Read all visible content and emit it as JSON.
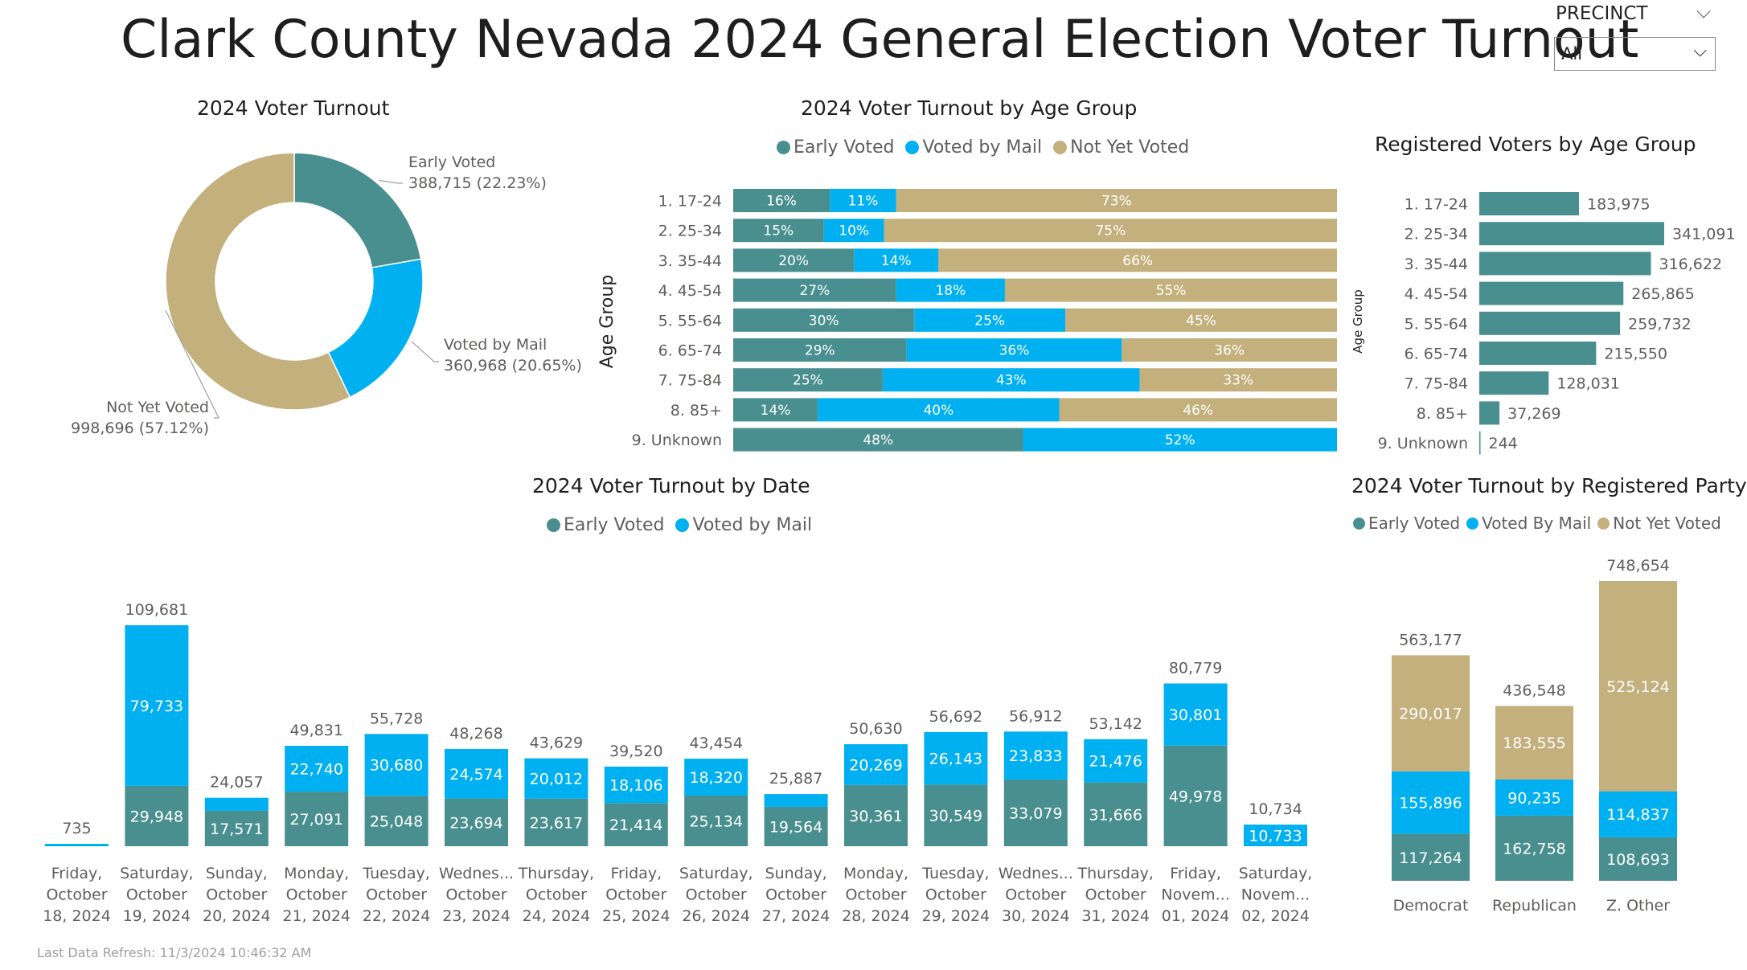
{
  "title": "Clark County Nevada 2024 General Election Voter Turnout",
  "slicer": {
    "label": "PRECINCT",
    "value": "All"
  },
  "refresh": "Last Data Refresh: 11/3/2024 10:46:32 AM",
  "colors": {
    "early": "#4a8f8f",
    "mail": "#00b0f0",
    "notyet": "#c4b07c"
  },
  "chart_data": [
    {
      "id": "donut",
      "type": "pie",
      "title": "2024 Voter Turnout",
      "slices": [
        {
          "name": "Early Voted",
          "value": 388715,
          "label": "388,715 (22.23%)",
          "percent": 22.23
        },
        {
          "name": "Voted by Mail",
          "value": 360968,
          "label": "360,968 (20.65%)",
          "percent": 20.65
        },
        {
          "name": "Not Yet Voted",
          "value": 998696,
          "label": "998,696 (57.12%)",
          "percent": 57.12
        }
      ]
    },
    {
      "id": "age_turnout",
      "type": "bar",
      "title": "2024 Voter Turnout by Age Group",
      "orientation": "horizontal-stacked-100",
      "ylabel": "Age Group",
      "categories": [
        "1. 17-24",
        "2. 25-34",
        "3. 35-44",
        "4. 45-54",
        "5. 55-64",
        "6. 65-74",
        "7. 75-84",
        "8. 85+",
        "9. Unknown"
      ],
      "series": [
        {
          "name": "Early Voted",
          "values": [
            16,
            15,
            20,
            27,
            30,
            29,
            25,
            14,
            48
          ]
        },
        {
          "name": "Voted by Mail",
          "values": [
            11,
            10,
            14,
            18,
            25,
            36,
            43,
            40,
            52
          ]
        },
        {
          "name": "Not Yet Voted",
          "values": [
            73,
            75,
            66,
            55,
            45,
            36,
            33,
            46,
            0
          ]
        }
      ]
    },
    {
      "id": "registered_age",
      "type": "bar",
      "title": "Registered Voters by Age Group",
      "orientation": "horizontal",
      "ylabel": "Age Group",
      "categories": [
        "1. 17-24",
        "2. 25-34",
        "3. 35-44",
        "4. 45-54",
        "5. 55-64",
        "6. 65-74",
        "7. 75-84",
        "8. 85+",
        "9. Unknown"
      ],
      "values": [
        183975,
        341091,
        316622,
        265865,
        259732,
        215550,
        128031,
        37269,
        244
      ],
      "labels": [
        "183,975",
        "341,091",
        "316,622",
        "265,865",
        "259,732",
        "215,550",
        "128,031",
        "37,269",
        "244"
      ]
    },
    {
      "id": "date_turnout",
      "type": "bar",
      "title": "2024 Voter Turnout by Date",
      "orientation": "vertical-stacked",
      "categories": [
        [
          "Friday,",
          "October",
          "18, 2024"
        ],
        [
          "Saturday,",
          "October",
          "19, 2024"
        ],
        [
          "Sunday,",
          "October",
          "20, 2024"
        ],
        [
          "Monday,",
          "October",
          "21, 2024"
        ],
        [
          "Tuesday,",
          "October",
          "22, 2024"
        ],
        [
          "Wednes...",
          "October",
          "23, 2024"
        ],
        [
          "Thursday,",
          "October",
          "24, 2024"
        ],
        [
          "Friday,",
          "October",
          "25, 2024"
        ],
        [
          "Saturday,",
          "October",
          "26, 2024"
        ],
        [
          "Sunday,",
          "October",
          "27, 2024"
        ],
        [
          "Monday,",
          "October",
          "28, 2024"
        ],
        [
          "Tuesday,",
          "October",
          "29, 2024"
        ],
        [
          "Wednes...",
          "October",
          "30, 2024"
        ],
        [
          "Thursday,",
          "October",
          "31, 2024"
        ],
        [
          "Friday,",
          "Novem...",
          "01, 2024"
        ],
        [
          "Saturday,",
          "Novem...",
          "02, 2024"
        ]
      ],
      "series": [
        {
          "name": "Early Voted",
          "values": [
            0,
            29948,
            17571,
            27091,
            25048,
            23694,
            23617,
            21414,
            25134,
            19564,
            30361,
            30549,
            33079,
            31666,
            49978,
            0
          ],
          "labels": [
            "",
            "29,948",
            "17,571",
            "27,091",
            "25,048",
            "23,694",
            "23,617",
            "21,414",
            "25,134",
            "19,564",
            "30,361",
            "30,549",
            "33,079",
            "31,666",
            "49,978",
            ""
          ]
        },
        {
          "name": "Voted by Mail",
          "values": [
            735,
            79733,
            6486,
            22740,
            30680,
            24574,
            20012,
            18106,
            18320,
            6323,
            20269,
            26143,
            23833,
            21476,
            30801,
            10733
          ],
          "labels": [
            "",
            "79,733",
            "",
            "22,740",
            "30,680",
            "24,574",
            "20,012",
            "18,106",
            "18,320",
            "",
            "20,269",
            "26,143",
            "23,833",
            "21,476",
            "30,801",
            "10,733"
          ]
        }
      ],
      "totals": [
        "735",
        "109,681",
        "24,057",
        "49,831",
        "55,728",
        "48,268",
        "43,629",
        "39,520",
        "43,454",
        "25,887",
        "50,630",
        "56,692",
        "56,912",
        "53,142",
        "80,779",
        "10,734"
      ],
      "total_values": [
        735,
        109681,
        24057,
        49831,
        55728,
        48268,
        43629,
        39520,
        43454,
        25887,
        50630,
        56692,
        56912,
        53142,
        80779,
        10734
      ]
    },
    {
      "id": "party_turnout",
      "type": "bar",
      "title": "2024 Voter Turnout by Registered Party",
      "orientation": "vertical-stacked",
      "categories": [
        "Democrat",
        "Republican",
        "Z. Other"
      ],
      "series": [
        {
          "name": "Early Voted",
          "values": [
            117264,
            162758,
            108693
          ],
          "labels": [
            "117,264",
            "162,758",
            "108,693"
          ]
        },
        {
          "name": "Voted By Mail",
          "values": [
            155896,
            90235,
            114837
          ],
          "labels": [
            "155,896",
            "90,235",
            "114,837"
          ]
        },
        {
          "name": "Not Yet Voted",
          "values": [
            290017,
            183555,
            525124
          ],
          "labels": [
            "290,017",
            "183,555",
            "525,124"
          ]
        }
      ],
      "totals": [
        "563,177",
        "436,548",
        "748,654"
      ],
      "total_values": [
        563177,
        436548,
        748654
      ]
    }
  ]
}
